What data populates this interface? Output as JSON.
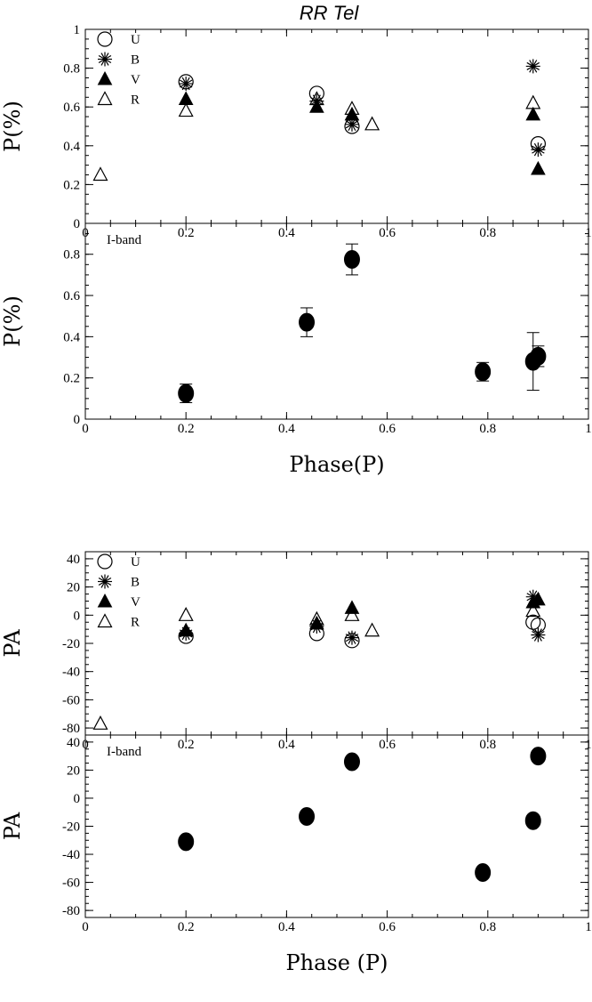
{
  "chart_data": [
    {
      "type": "scatter",
      "title": "RR Tel",
      "xlabel": "",
      "ylabel": "P(%)",
      "xlim": [
        0,
        1
      ],
      "ylim": [
        0,
        1
      ],
      "x_ticks": [
        "0",
        "0.2",
        "0.4",
        "0.6",
        "0.8",
        "1"
      ],
      "y_ticks": [
        "0",
        "0.2",
        "0.4",
        "0.6",
        "0.8",
        "1"
      ],
      "legend": "top-left",
      "series": [
        {
          "name": "U",
          "marker": "open-circle",
          "points": [
            [
              0.2,
              0.73
            ],
            [
              0.46,
              0.67
            ],
            [
              0.53,
              0.5
            ],
            [
              0.9,
              0.41
            ]
          ]
        },
        {
          "name": "B",
          "marker": "asterisk",
          "points": [
            [
              0.2,
              0.72
            ],
            [
              0.46,
              0.63
            ],
            [
              0.53,
              0.51
            ],
            [
              0.89,
              0.81
            ],
            [
              0.9,
              0.38
            ]
          ]
        },
        {
          "name": "V",
          "marker": "filled-triangle",
          "points": [
            [
              0.2,
              0.64
            ],
            [
              0.46,
              0.6
            ],
            [
              0.53,
              0.56
            ],
            [
              0.89,
              0.56
            ],
            [
              0.9,
              0.28
            ]
          ]
        },
        {
          "name": "R",
          "marker": "open-triangle",
          "points": [
            [
              0.03,
              0.25
            ],
            [
              0.2,
              0.58
            ],
            [
              0.46,
              0.64
            ],
            [
              0.53,
              0.59
            ],
            [
              0.57,
              0.51
            ],
            [
              0.89,
              0.62
            ]
          ]
        }
      ]
    },
    {
      "type": "scatter",
      "title": "",
      "xlabel": "Phase(P)",
      "ylabel": "P(%)",
      "xlim": [
        0,
        1
      ],
      "ylim": [
        0,
        0.95
      ],
      "x_ticks": [
        "0",
        "0.2",
        "0.4",
        "0.6",
        "0.8",
        "1"
      ],
      "y_ticks": [
        "0",
        "0.2",
        "0.4",
        "0.6",
        "0.8"
      ],
      "annotation": "I-band",
      "series": [
        {
          "marker": "filled-circle",
          "points": [
            {
              "x": 0.2,
              "y": 0.125,
              "err": 0.045
            },
            {
              "x": 0.44,
              "y": 0.47,
              "err": 0.07
            },
            {
              "x": 0.53,
              "y": 0.775,
              "err": 0.075
            },
            {
              "x": 0.79,
              "y": 0.23,
              "err": 0.045
            },
            {
              "x": 0.89,
              "y": 0.28,
              "err": 0.14
            },
            {
              "x": 0.9,
              "y": 0.305,
              "err": 0.05
            }
          ]
        }
      ]
    },
    {
      "type": "scatter",
      "title": "",
      "xlabel": "",
      "ylabel": "PA",
      "xlim": [
        0,
        1
      ],
      "ylim": [
        -85,
        45
      ],
      "x_ticks": [
        "0",
        "0.2",
        "0.4",
        "0.6",
        "0.8",
        "1"
      ],
      "y_ticks": [
        "-80",
        "-60",
        "-40",
        "-20",
        "0",
        "20",
        "40"
      ],
      "legend": "top-left",
      "series": [
        {
          "name": "U",
          "marker": "open-circle",
          "points": [
            [
              0.2,
              -15
            ],
            [
              0.46,
              -13
            ],
            [
              0.53,
              -18
            ],
            [
              0.89,
              -5
            ],
            [
              0.9,
              -7
            ]
          ]
        },
        {
          "name": "B",
          "marker": "asterisk",
          "points": [
            [
              0.2,
              -13
            ],
            [
              0.46,
              -8
            ],
            [
              0.53,
              -16
            ],
            [
              0.89,
              13
            ],
            [
              0.9,
              -14
            ]
          ]
        },
        {
          "name": "V",
          "marker": "filled-triangle",
          "points": [
            [
              0.2,
              -11
            ],
            [
              0.46,
              -6
            ],
            [
              0.53,
              5
            ],
            [
              0.89,
              9
            ],
            [
              0.9,
              11
            ]
          ]
        },
        {
          "name": "R",
          "marker": "open-triangle",
          "points": [
            [
              0.03,
              -77
            ],
            [
              0.2,
              0
            ],
            [
              0.46,
              -3
            ],
            [
              0.53,
              0
            ],
            [
              0.57,
              -11
            ],
            [
              0.89,
              3
            ]
          ]
        }
      ]
    },
    {
      "type": "scatter",
      "title": "",
      "xlabel": "Phase (P)",
      "ylabel": "PA",
      "xlim": [
        0,
        1
      ],
      "ylim": [
        -85,
        45
      ],
      "x_ticks": [
        "0",
        "0.2",
        "0.4",
        "0.6",
        "0.8",
        "1"
      ],
      "y_ticks": [
        "-80",
        "-60",
        "-40",
        "-20",
        "0",
        "20",
        "40"
      ],
      "annotation": "I-band",
      "series": [
        {
          "marker": "filled-circle",
          "points": [
            [
              0.2,
              -31
            ],
            [
              0.44,
              -13
            ],
            [
              0.53,
              26
            ],
            [
              0.79,
              -53
            ],
            [
              0.89,
              -16
            ],
            [
              0.9,
              30
            ]
          ]
        }
      ]
    }
  ]
}
